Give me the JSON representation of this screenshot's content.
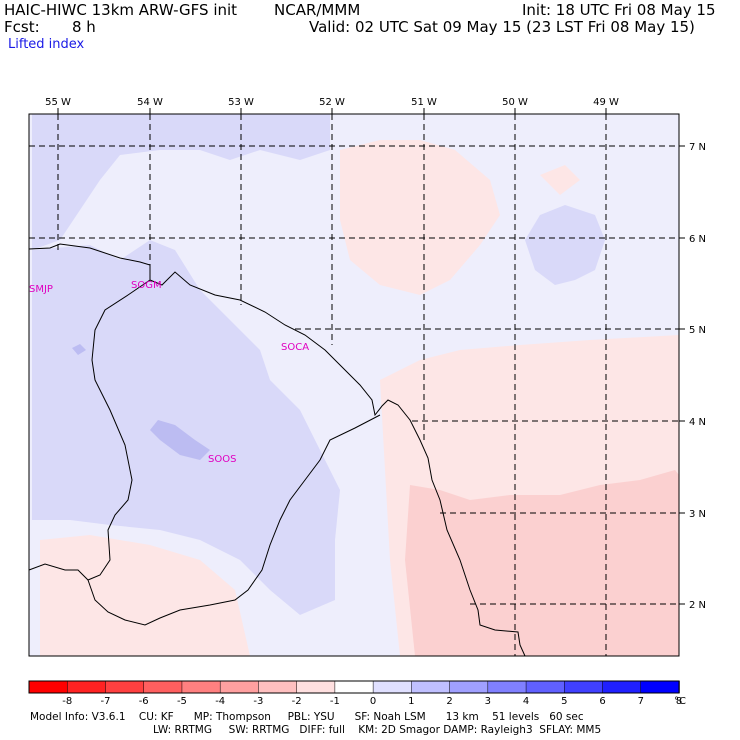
{
  "header": {
    "model": "HAIC-HIWC 13km ARW-GFS init",
    "org": "NCAR/MMM",
    "init": "Init: 18 UTC Fri 08 May 15",
    "fcst_label": "Fcst:",
    "fcst_value": "8 h",
    "valid": "Valid: 02 UTC Sat 09 May 15 (23 LST Fri 08 May 15)",
    "field": "Lifted index"
  },
  "map": {
    "lon_labels": [
      "55 W",
      "54 W",
      "53 W",
      "52 W",
      "51 W",
      "50 W",
      "49 W"
    ],
    "lat_labels": [
      "7 N",
      "6 N",
      "5 N",
      "4 N",
      "3 N",
      "2 N"
    ],
    "stations": [
      "SMJP",
      "SOGM",
      "SOCA",
      "SOOS"
    ],
    "colors": {
      "station": "#e000c0",
      "neutral": "#eeeefc",
      "stable_light": "#d9d9f9",
      "stable_mid": "#bcbcf2",
      "unstable_light": "#fde6e6",
      "unstable_mid": "#fbd0d0"
    }
  },
  "colorbar": {
    "ticks": [
      "-8",
      "-7",
      "-6",
      "-5",
      "-4",
      "-3",
      "-2",
      "-1",
      "0",
      "1",
      "2",
      "3",
      "4",
      "5",
      "6",
      "7",
      "8"
    ],
    "unit": "°C",
    "colors": [
      "#ff0000",
      "#ff2222",
      "#ff4040",
      "#ff5f5f",
      "#ff8080",
      "#ffa0a0",
      "#ffc0c0",
      "#ffe0e0",
      "#ffffff",
      "#e0e0ff",
      "#c0c0ff",
      "#a0a0ff",
      "#8080ff",
      "#6060ff",
      "#4040ff",
      "#2020ff",
      "#0000ff"
    ]
  },
  "footer": {
    "line1": "Model Info: V3.6.1    CU: KF      MP: Thompson     PBL: YSU      SF: Noah LSM      13 km    51 levels   60 sec",
    "line2": "LW: RRTMG     SW: RRTMG   DIFF: full    KM: 2D Smagor DAMP: Rayleigh3  SFLAY: MM5"
  }
}
